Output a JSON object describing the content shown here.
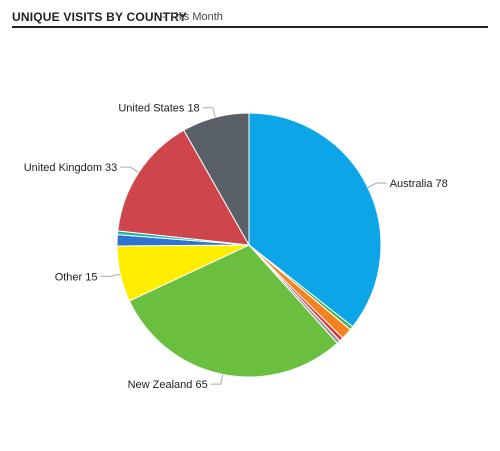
{
  "header": {
    "title": "UNIQUE VISITS BY COUNTRY",
    "subtitle": "- This Month"
  },
  "chart_data": {
    "type": "pie",
    "title": "UNIQUE VISITS BY COUNTRY",
    "subtitle": "This Month",
    "slices": [
      {
        "label": "Australia 78",
        "value": 78,
        "color": "#0ca6e8"
      },
      {
        "label": "",
        "value": 1,
        "color": "#4caf50"
      },
      {
        "label": "",
        "value": 3,
        "color": "#f5821f"
      },
      {
        "label": "",
        "value": 1,
        "color": "#e32b2b"
      },
      {
        "label": "",
        "value": 1,
        "color": "#9b9b9b"
      },
      {
        "label": "New Zealand 65",
        "value": 65,
        "color": "#6abf3f"
      },
      {
        "label": "Other 15",
        "value": 15,
        "color": "#ffee00"
      },
      {
        "label": "",
        "value": 3,
        "color": "#2f74d0"
      },
      {
        "label": "",
        "value": 1,
        "color": "#1fb3a3"
      },
      {
        "label": "United Kingdom 33",
        "value": 33,
        "color": "#ce454b"
      },
      {
        "label": "United States 18",
        "value": 18,
        "color": "#5a6068"
      }
    ]
  }
}
